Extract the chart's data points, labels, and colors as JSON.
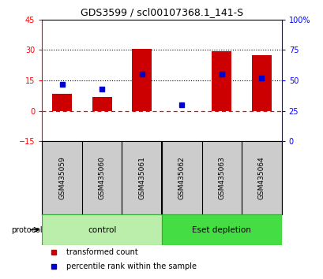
{
  "title": "GDS3599 / scl00107368.1_141-S",
  "categories": [
    "GSM435059",
    "GSM435060",
    "GSM435061",
    "GSM435062",
    "GSM435063",
    "GSM435064"
  ],
  "red_values": [
    8.5,
    7.0,
    30.5,
    -0.2,
    29.5,
    27.5
  ],
  "blue_values_pct": [
    47,
    43,
    55,
    30,
    55,
    52
  ],
  "red_ylim": [
    -15,
    45
  ],
  "blue_ylim": [
    0,
    100
  ],
  "red_yticks": [
    -15,
    0,
    15,
    30,
    45
  ],
  "blue_yticks": [
    0,
    25,
    50,
    75,
    100
  ],
  "blue_yticklabels": [
    "0",
    "25",
    "50",
    "75",
    "100%"
  ],
  "protocol_groups": [
    {
      "label": "control",
      "start": 0,
      "end": 3,
      "color": "#BBEEAA"
    },
    {
      "label": "Eset depletion",
      "start": 3,
      "end": 6,
      "color": "#44DD44"
    }
  ],
  "bar_width": 0.5,
  "bar_color": "#CC0000",
  "marker_color": "#0000CC",
  "marker_size": 5,
  "label_bg_color": "#CCCCCC",
  "title_fontsize": 9,
  "tick_fontsize": 7,
  "label_fontsize": 6.5,
  "protocol_fontsize": 7.5,
  "legend_fontsize": 7
}
